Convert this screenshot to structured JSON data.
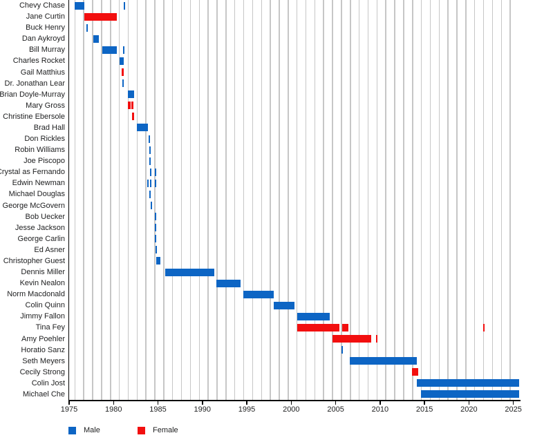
{
  "colors": {
    "male": "#0d65c4",
    "female": "#f20f0f",
    "gridline": "#c6c6c6",
    "axis": "#000000",
    "text": "#202122",
    "background": "#ffffff"
  },
  "legend": {
    "male_label": "Male",
    "female_label": "Female"
  },
  "chart_data": {
    "type": "bar",
    "subtype": "gantt-timeline",
    "orientation": "horizontal",
    "title": "",
    "xlabel": "",
    "ylabel": "",
    "legend_position": "bottom-left",
    "grid": "vertical yearly lines at TV-season boundaries",
    "x_axis": {
      "min": 1975,
      "max": 2025.65,
      "tick_years": [
        1975,
        1980,
        1985,
        1990,
        1995,
        2000,
        2005,
        2010,
        2015,
        2020,
        2025
      ],
      "gridline_step": 1,
      "gridline_offset": 0.65
    },
    "series": [
      {
        "name": "Chevy Chase",
        "group": "Male",
        "segments": [
          [
            1975.6,
            1976.75
          ]
        ],
        "events": [
          1981.2
        ]
      },
      {
        "name": "Jane Curtin",
        "group": "Female",
        "segments": [
          [
            1976.75,
            1980.4
          ]
        ],
        "events": []
      },
      {
        "name": "Buck Henry",
        "group": "Male",
        "segments": [],
        "events": [
          1977.05
        ]
      },
      {
        "name": "Dan Aykroyd",
        "group": "Male",
        "segments": [
          [
            1977.7,
            1978.35
          ]
        ],
        "events": []
      },
      {
        "name": "Bill Murray",
        "group": "Male",
        "segments": [
          [
            1978.7,
            1980.35
          ]
        ],
        "events": [
          1981.15
        ]
      },
      {
        "name": "Charles Rocket",
        "group": "Male",
        "segments": [
          [
            1980.7,
            1981.15
          ]
        ],
        "events": []
      },
      {
        "name": "Gail Matthius",
        "group": "Female",
        "segments": [
          [
            1980.9,
            1981.15
          ]
        ],
        "events": []
      },
      {
        "name": "Dr. Jonathan Lear",
        "group": "Male",
        "segments": [],
        "events": [
          1981.1
        ]
      },
      {
        "name": "Brian Doyle-Murray",
        "group": "Male",
        "segments": [
          [
            1981.65,
            1982.35
          ]
        ],
        "events": []
      },
      {
        "name": "Mary Gross",
        "group": "Female",
        "segments": [
          [
            1981.65,
            1981.9
          ],
          [
            1982.0,
            1982.2
          ]
        ],
        "events": []
      },
      {
        "name": "Christine Ebersole",
        "group": "Female",
        "segments": [
          [
            1982.1,
            1982.3
          ]
        ],
        "events": []
      },
      {
        "name": "Brad Hall",
        "group": "Male",
        "segments": [
          [
            1982.65,
            1983.85
          ]
        ],
        "events": []
      },
      {
        "name": "Don Rickles",
        "group": "Male",
        "segments": [],
        "events": [
          1984.05
        ]
      },
      {
        "name": "Robin Williams",
        "group": "Male",
        "segments": [],
        "events": [
          1984.08
        ]
      },
      {
        "name": "Joe Piscopo",
        "group": "Male",
        "segments": [],
        "events": [
          1984.1
        ]
      },
      {
        "name": "Crystal as Fernando",
        "group": "Male",
        "segments": [],
        "events": [
          1984.15,
          1984.7
        ]
      },
      {
        "name": "Edwin Newman",
        "group": "Male",
        "segments": [],
        "events": [
          1983.9,
          1984.15,
          1984.7
        ]
      },
      {
        "name": "Michael Douglas",
        "group": "Male",
        "segments": [],
        "events": [
          1984.1
        ]
      },
      {
        "name": "George McGovern",
        "group": "Male",
        "segments": [],
        "events": [
          1984.25
        ]
      },
      {
        "name": "Bob Uecker",
        "group": "Male",
        "segments": [],
        "events": [
          1984.7
        ]
      },
      {
        "name": "Jesse Jackson",
        "group": "Male",
        "segments": [],
        "events": [
          1984.7
        ]
      },
      {
        "name": "George Carlin",
        "group": "Male",
        "segments": [],
        "events": [
          1984.75
        ]
      },
      {
        "name": "Ed Asner",
        "group": "Male",
        "segments": [],
        "events": [
          1984.78
        ]
      },
      {
        "name": "Christopher Guest",
        "group": "Male",
        "segments": [
          [
            1984.8,
            1985.3
          ]
        ],
        "events": []
      },
      {
        "name": "Dennis Miller",
        "group": "Male",
        "segments": [
          [
            1985.8,
            1991.35
          ]
        ],
        "events": []
      },
      {
        "name": "Kevin Nealon",
        "group": "Male",
        "segments": [
          [
            1991.55,
            1994.3
          ]
        ],
        "events": []
      },
      {
        "name": "Norm Macdonald",
        "group": "Male",
        "segments": [
          [
            1994.6,
            1998.0
          ]
        ],
        "events": []
      },
      {
        "name": "Colin Quinn",
        "group": "Male",
        "segments": [
          [
            1998.0,
            2000.4
          ]
        ],
        "events": []
      },
      {
        "name": "Jimmy Fallon",
        "group": "Male",
        "segments": [
          [
            2000.65,
            2004.35
          ]
        ],
        "events": []
      },
      {
        "name": "Tina Fey",
        "group": "Female",
        "segments": [
          [
            2000.65,
            2005.4
          ],
          [
            2005.7,
            2006.4
          ]
        ],
        "events": [
          2021.7
        ]
      },
      {
        "name": "Amy Poehler",
        "group": "Female",
        "segments": [
          [
            2004.65,
            2009.0
          ]
        ],
        "events": [
          2009.65
        ]
      },
      {
        "name": "Horatio Sanz",
        "group": "Male",
        "segments": [],
        "events": [
          2005.7
        ]
      },
      {
        "name": "Seth Meyers",
        "group": "Male",
        "segments": [
          [
            2006.55,
            2014.1
          ]
        ],
        "events": []
      },
      {
        "name": "Cecily Strong",
        "group": "Female",
        "segments": [
          [
            2013.6,
            2014.3
          ]
        ],
        "events": []
      },
      {
        "name": "Colin Jost",
        "group": "Male",
        "segments": [
          [
            2014.1,
            2025.65
          ]
        ],
        "events": []
      },
      {
        "name": "Michael Che",
        "group": "Male",
        "segments": [
          [
            2014.6,
            2025.65
          ]
        ],
        "events": []
      }
    ]
  }
}
